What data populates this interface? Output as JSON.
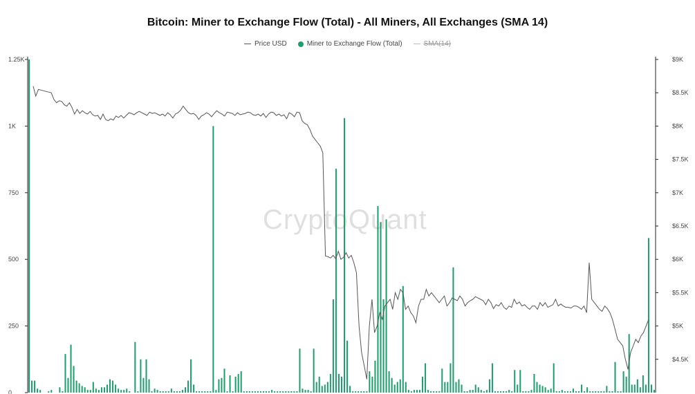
{
  "chart_data": {
    "type": "bar",
    "title": "Bitcoin: Miner to Exchange Flow (Total) - All Miners, All Exchanges (SMA 14)",
    "legend": {
      "placement": "top-center",
      "items": [
        {
          "label": "Price USD",
          "marker": "line",
          "enabled": true
        },
        {
          "label": "Miner to Exchange Flow (Total)",
          "marker": "dot",
          "enabled": true
        },
        {
          "label": "SMA(14)",
          "marker": "line",
          "enabled": false
        }
      ]
    },
    "watermark": "CryptoQuant",
    "colors": {
      "flow": "#1a9e6a",
      "price": "#555555",
      "axis": "#222222"
    },
    "y_left": {
      "range": [
        0,
        1250
      ],
      "ticks": [
        0,
        250,
        500,
        750,
        1000,
        1250
      ],
      "tick_labels": [
        "0",
        "250",
        "500",
        "750",
        "1K",
        "1.25K"
      ]
    },
    "y_right": {
      "range": [
        4000,
        9000
      ],
      "ticks": [
        4500,
        5000,
        5500,
        6000,
        6500,
        7000,
        7500,
        8000,
        8500,
        9000
      ],
      "tick_labels": [
        "$4.5K",
        "$5K",
        "$5.5K",
        "$6K",
        "$6.5K",
        "$7K",
        "$7.5K",
        "$8K",
        "$8.5K",
        "$9K"
      ]
    },
    "grid": false,
    "series": [
      {
        "name": "Miner to Exchange Flow (Total)",
        "axis": "left",
        "kind": "bar",
        "values": [
          1250,
          45,
          45,
          15,
          10,
          0,
          0,
          5,
          10,
          0,
          0,
          20,
          5,
          145,
          55,
          180,
          100,
          45,
          35,
          25,
          20,
          10,
          10,
          40,
          15,
          10,
          20,
          20,
          30,
          50,
          45,
          30,
          15,
          10,
          10,
          15,
          5,
          0,
          190,
          5,
          125,
          55,
          125,
          50,
          5,
          15,
          10,
          5,
          5,
          5,
          5,
          15,
          5,
          5,
          5,
          10,
          20,
          45,
          125,
          30,
          5,
          5,
          5,
          5,
          5,
          5,
          1000,
          10,
          50,
          55,
          90,
          5,
          65,
          5,
          60,
          70,
          80,
          5,
          5,
          5,
          5,
          5,
          5,
          5,
          5,
          5,
          5,
          10,
          5,
          5,
          5,
          5,
          5,
          5,
          5,
          5,
          5,
          165,
          15,
          10,
          10,
          5,
          165,
          40,
          60,
          25,
          30,
          40,
          70,
          350,
          840,
          70,
          60,
          1030,
          195,
          25,
          5,
          5,
          5,
          5,
          5,
          5,
          80,
          60,
          120,
          700,
          640,
          350,
          650,
          80,
          55,
          30,
          40,
          50,
          400,
          40,
          10,
          5,
          10,
          10,
          10,
          60,
          110,
          10,
          5,
          5,
          5,
          5,
          90,
          40,
          40,
          110,
          470,
          40,
          50,
          30,
          5,
          5,
          10,
          10,
          30,
          20,
          10,
          5,
          10,
          50,
          110,
          5,
          5,
          5,
          5,
          5,
          10,
          5,
          85,
          30,
          85,
          5,
          5,
          5,
          10,
          70,
          40,
          30,
          25,
          20,
          10,
          15,
          110,
          5,
          5,
          10,
          5,
          5,
          5,
          15,
          5,
          5,
          30,
          5,
          20,
          5,
          5,
          5,
          5,
          5,
          5,
          25,
          5,
          5,
          115,
          5,
          5,
          80,
          60,
          220,
          30,
          30,
          50,
          20,
          65,
          30,
          580,
          30,
          10
        ]
      },
      {
        "name": "Price USD",
        "axis": "right",
        "kind": "line",
        "values": [
          8600,
          8450,
          8550,
          8540,
          8530,
          8520,
          8510,
          8500,
          8400,
          8350,
          8380,
          8370,
          8320,
          8300,
          8350,
          8280,
          8180,
          8250,
          8190,
          8230,
          8200,
          8180,
          8220,
          8170,
          8150,
          8160,
          8100,
          8180,
          8100,
          8080,
          8110,
          8090,
          8150,
          8130,
          8160,
          8120,
          8160,
          8200,
          8190,
          8170,
          8200,
          8220,
          8200,
          8180,
          8160,
          8210,
          8190,
          8200,
          8180,
          8160,
          8180,
          8150,
          8200,
          8170,
          8120,
          8180,
          8200,
          8240,
          8300,
          8250,
          8200,
          8180,
          8190,
          8160,
          8100,
          8150,
          8170,
          8200,
          8180,
          8140,
          8190,
          8230,
          8200,
          8180,
          8150,
          8210,
          8200,
          8190,
          8160,
          8200,
          8170,
          8180,
          8190,
          8210,
          8200,
          8170,
          8160,
          8180,
          8150,
          8190,
          8130,
          8180,
          8210,
          8200,
          8160,
          8180,
          8150,
          8170,
          8110,
          8200,
          8180,
          8140,
          8210,
          8200,
          8080,
          8040,
          8020,
          7950,
          7850,
          7800,
          7750,
          7700,
          7600,
          6050,
          6040,
          6020,
          6060,
          6010,
          6120,
          6000,
          6030,
          6100,
          6020,
          6060,
          5950,
          5800,
          5000,
          4600,
          4400,
          4200,
          5000,
          5400,
          4900,
          5000,
          5200,
          5100,
          5300,
          5350,
          5400,
          5250,
          5500,
          5400,
          5550,
          5500,
          5250,
          5300,
          5200,
          5150,
          5050,
          5300,
          5400,
          5400,
          5550,
          5450,
          5500,
          5450,
          5400,
          5350,
          5400,
          5450,
          5300,
          5350,
          5420,
          5400,
          5380,
          5450,
          5400,
          5300,
          5350,
          5380,
          5400,
          5440,
          5420,
          5400,
          5380,
          5320,
          5400,
          5350,
          5260,
          5320,
          5300,
          5350,
          5280,
          5250,
          5300,
          5280,
          5400,
          5330,
          5360,
          5300,
          5320,
          5280,
          5250,
          5300,
          5300,
          5250,
          5350,
          5300,
          5350,
          5280,
          5300,
          5320,
          5400,
          5300,
          5330,
          5300,
          5280,
          5280,
          5270,
          5300,
          5300,
          5280,
          5250,
          5300,
          5200,
          5950,
          5400,
          5350,
          5300,
          5250,
          5220,
          5300,
          5260,
          5200,
          5100,
          4950,
          4800,
          4750,
          4700,
          4500,
          4350,
          4600,
          4700,
          4800,
          4750,
          4850,
          4900,
          5000,
          5100
        ]
      }
    ]
  },
  "icons": {
    "price_marker": "line-marker",
    "flow_marker": "dot-marker",
    "sma_marker": "line-marker"
  }
}
